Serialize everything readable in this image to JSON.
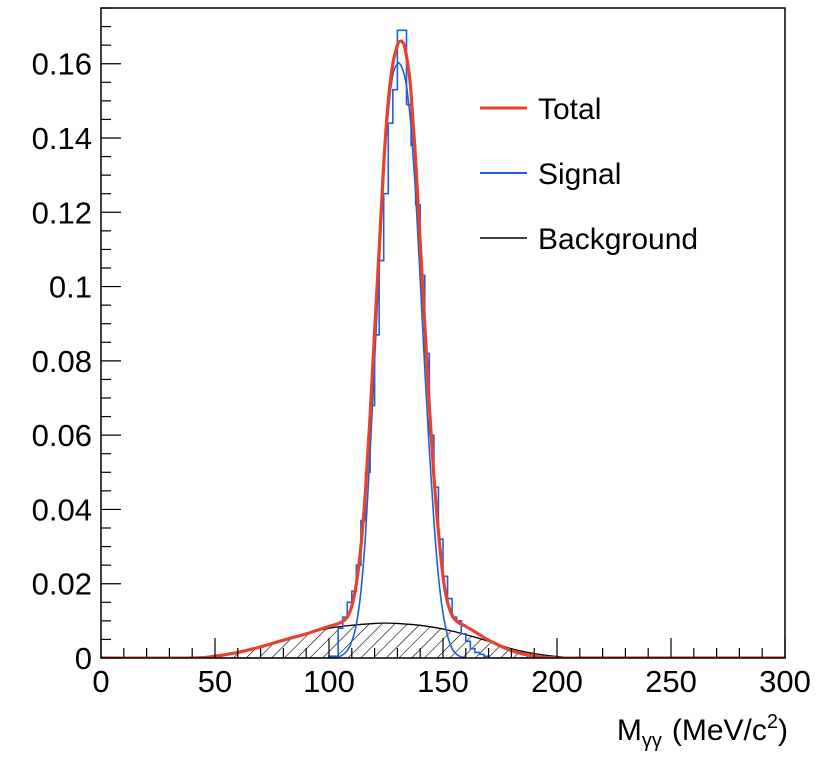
{
  "chart_data": {
    "type": "line",
    "title": "",
    "xlabel_main": "M",
    "xlabel_sub": "γγ",
    "xlabel_rest": "(MeV/c",
    "xlabel_sup": "2",
    "xlabel_close": ")",
    "ylabel": "",
    "xlim": [
      0,
      300
    ],
    "ylim": [
      0,
      0.175
    ],
    "xticks": [
      0,
      50,
      100,
      150,
      200,
      250,
      300
    ],
    "xtick_labels": [
      "0",
      "50",
      "100",
      "150",
      "200",
      "250",
      "300"
    ],
    "yticks": [
      0,
      0.02,
      0.04,
      0.06,
      0.08,
      0.1,
      0.12,
      0.14,
      0.16
    ],
    "ytick_labels": [
      "0",
      "0.02",
      "0.04",
      "0.06",
      "0.08",
      "0.1",
      "0.12",
      "0.14",
      "0.16"
    ],
    "grid": false,
    "legend_position": "top-right",
    "series": [
      {
        "name": "Total",
        "color": "#e8412e",
        "style": "smooth-line",
        "x": [
          0,
          40,
          50,
          60,
          70,
          80,
          90,
          95,
          100,
          105,
          108,
          110,
          112,
          114,
          116,
          118,
          120,
          122,
          124,
          126,
          128,
          130,
          131,
          132,
          133,
          134,
          135,
          136,
          138,
          140,
          142,
          144,
          146,
          148,
          150,
          152,
          155,
          160,
          165,
          170,
          180,
          190,
          200,
          210,
          220,
          300
        ],
        "y": [
          0,
          0,
          0.0005,
          0.0015,
          0.003,
          0.0048,
          0.0065,
          0.0075,
          0.0085,
          0.0095,
          0.011,
          0.014,
          0.02,
          0.03,
          0.045,
          0.065,
          0.088,
          0.11,
          0.133,
          0.15,
          0.16,
          0.165,
          0.166,
          0.166,
          0.165,
          0.162,
          0.158,
          0.152,
          0.134,
          0.112,
          0.09,
          0.068,
          0.049,
          0.034,
          0.022,
          0.015,
          0.0105,
          0.0085,
          0.0067,
          0.0048,
          0.002,
          0.0005,
          0,
          0,
          0,
          0
        ]
      },
      {
        "name": "Signal",
        "color": "#1f5fd6",
        "style": "histogram",
        "bin_edges": [
          0,
          100,
          102,
          104,
          106,
          108,
          110,
          112,
          114,
          116,
          118,
          120,
          122,
          124,
          126,
          128,
          130,
          132,
          134,
          136,
          138,
          140,
          142,
          144,
          146,
          148,
          150,
          152,
          154,
          156,
          158,
          160,
          162,
          164,
          166,
          168,
          170,
          300
        ],
        "values": [
          0,
          0.0005,
          0.0005,
          0.008,
          0.011,
          0.015,
          0.018,
          0.025,
          0.037,
          0.05,
          0.068,
          0.087,
          0.107,
          0.125,
          0.144,
          0.153,
          0.169,
          0.169,
          0.149,
          0.138,
          0.122,
          0.103,
          0.082,
          0.06,
          0.046,
          0.032,
          0.022,
          0.016,
          0.011,
          0.01,
          0.0065,
          0.0045,
          0.0025,
          0.0015,
          0.001,
          0.0005,
          0
        ]
      },
      {
        "name": "Signal",
        "color": "#1f5fd6",
        "style": "smooth-line",
        "x": [
          100,
          105,
          108,
          110,
          112,
          114,
          116,
          118,
          120,
          122,
          124,
          126,
          128,
          130,
          131,
          132,
          133,
          134,
          135,
          136,
          138,
          140,
          142,
          144,
          146,
          148,
          150,
          152,
          154,
          156,
          158,
          160
        ],
        "y": [
          0,
          0.0005,
          0.002,
          0.0045,
          0.009,
          0.018,
          0.033,
          0.055,
          0.08,
          0.105,
          0.13,
          0.147,
          0.157,
          0.16,
          0.16,
          0.159,
          0.157,
          0.154,
          0.149,
          0.143,
          0.125,
          0.102,
          0.078,
          0.056,
          0.037,
          0.022,
          0.012,
          0.006,
          0.0025,
          0.001,
          0.0003,
          0
        ]
      },
      {
        "name": "Background",
        "color": "#000000",
        "style": "hatched-area",
        "x": [
          40,
          50,
          60,
          70,
          80,
          90,
          100,
          110,
          120,
          125,
          130,
          140,
          150,
          160,
          170,
          180,
          190,
          200,
          210
        ],
        "y": [
          0,
          0.0005,
          0.0015,
          0.003,
          0.0048,
          0.0065,
          0.008,
          0.0088,
          0.0093,
          0.0094,
          0.0093,
          0.0088,
          0.0078,
          0.0063,
          0.0045,
          0.0025,
          0.0012,
          0.0004,
          0
        ]
      }
    ],
    "legend": [
      {
        "label": "Total",
        "color": "#e8412e"
      },
      {
        "label": "Signal",
        "color": "#1f5fd6"
      },
      {
        "label": "Background",
        "color": "#000000"
      }
    ]
  }
}
